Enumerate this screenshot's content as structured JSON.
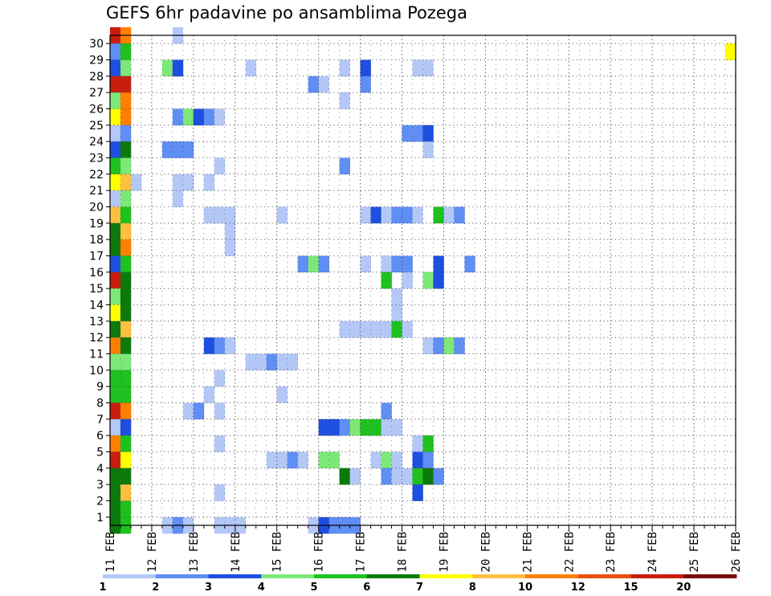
{
  "chart_data": {
    "type": "heatmap",
    "title": "GEFS 6hr padavine po ansamblima Pozega",
    "y_categories": [
      "1",
      "2",
      "3",
      "4",
      "5",
      "6",
      "7",
      "8",
      "9",
      "10",
      "11",
      "12",
      "13",
      "14",
      "15",
      "16",
      "17",
      "18",
      "19",
      "20",
      "21",
      "22",
      "23",
      "24",
      "25",
      "26",
      "27",
      "28",
      "29",
      "30"
    ],
    "x_tick_labels": [
      "11 FEB",
      "12 FEB",
      "13 FEB",
      "14 FEB",
      "15 FEB",
      "16 FEB",
      "17 FEB",
      "18 FEB",
      "19 FEB",
      "20 FEB",
      "21 FEB",
      "22 FEB",
      "23 FEB",
      "24 FEB",
      "25 FEB",
      "26 FEB"
    ],
    "x_unit": "6-hour steps (4 per day)",
    "xlim": [
      0,
      60
    ],
    "ylim": [
      0,
      30
    ],
    "grid": true,
    "colorbar": {
      "colors": [
        "#b4c8f8",
        "#5f8ef4",
        "#1e4fe0",
        "#7de878",
        "#1ec11e",
        "#0b7a0b",
        "#ffff00",
        "#ffc040",
        "#ff8000",
        "#e85010",
        "#c81e0e",
        "#7a0b0b"
      ],
      "labels": [
        "1",
        "2",
        "3",
        "4",
        "5",
        "6",
        "7",
        "8",
        "10",
        "12",
        "15",
        "20"
      ],
      "placement": "bottom"
    },
    "cells": [
      [
        30,
        0,
        10
      ],
      [
        30,
        1,
        8
      ],
      [
        30,
        6,
        0
      ],
      [
        29,
        0,
        1
      ],
      [
        29,
        1,
        4
      ],
      [
        29,
        59,
        6
      ],
      [
        28,
        0,
        2
      ],
      [
        28,
        1,
        3
      ],
      [
        28,
        5,
        3
      ],
      [
        28,
        6,
        2
      ],
      [
        28,
        13,
        0
      ],
      [
        28,
        22,
        0
      ],
      [
        28,
        24,
        2
      ],
      [
        28,
        29,
        0
      ],
      [
        28,
        30,
        0
      ],
      [
        27,
        0,
        10
      ],
      [
        27,
        1,
        10
      ],
      [
        27,
        19,
        1
      ],
      [
        27,
        20,
        0
      ],
      [
        27,
        24,
        1
      ],
      [
        26,
        0,
        3
      ],
      [
        26,
        1,
        8
      ],
      [
        26,
        22,
        0
      ],
      [
        25,
        0,
        6
      ],
      [
        25,
        1,
        8
      ],
      [
        25,
        6,
        1
      ],
      [
        25,
        7,
        3
      ],
      [
        25,
        8,
        2
      ],
      [
        25,
        9,
        1
      ],
      [
        25,
        10,
        0
      ],
      [
        24,
        0,
        0
      ],
      [
        24,
        1,
        1
      ],
      [
        24,
        28,
        1
      ],
      [
        24,
        29,
        1
      ],
      [
        24,
        30,
        2
      ],
      [
        23,
        0,
        2
      ],
      [
        23,
        1,
        5
      ],
      [
        23,
        5,
        1
      ],
      [
        23,
        6,
        1
      ],
      [
        23,
        7,
        1
      ],
      [
        23,
        30,
        0
      ],
      [
        22,
        0,
        4
      ],
      [
        22,
        1,
        3
      ],
      [
        22,
        10,
        0
      ],
      [
        22,
        22,
        1
      ],
      [
        21,
        0,
        6
      ],
      [
        21,
        1,
        7
      ],
      [
        21,
        2,
        0
      ],
      [
        21,
        6,
        0
      ],
      [
        21,
        7,
        0
      ],
      [
        21,
        9,
        0
      ],
      [
        20,
        0,
        0
      ],
      [
        20,
        1,
        3
      ],
      [
        20,
        6,
        0
      ],
      [
        19,
        0,
        7
      ],
      [
        19,
        1,
        4
      ],
      [
        19,
        9,
        0
      ],
      [
        19,
        10,
        0
      ],
      [
        19,
        11,
        0
      ],
      [
        19,
        16,
        0
      ],
      [
        19,
        24,
        0
      ],
      [
        19,
        25,
        2
      ],
      [
        19,
        26,
        0
      ],
      [
        19,
        27,
        1
      ],
      [
        19,
        28,
        1
      ],
      [
        19,
        29,
        0
      ],
      [
        19,
        31,
        4
      ],
      [
        19,
        32,
        0
      ],
      [
        19,
        33,
        1
      ],
      [
        18,
        0,
        5
      ],
      [
        18,
        1,
        7
      ],
      [
        18,
        11,
        0
      ],
      [
        17,
        0,
        5
      ],
      [
        17,
        1,
        8
      ],
      [
        17,
        11,
        0
      ],
      [
        16,
        0,
        2
      ],
      [
        16,
        1,
        4
      ],
      [
        16,
        18,
        1
      ],
      [
        16,
        19,
        3
      ],
      [
        16,
        20,
        1
      ],
      [
        16,
        24,
        0
      ],
      [
        16,
        26,
        0
      ],
      [
        16,
        27,
        1
      ],
      [
        16,
        28,
        1
      ],
      [
        16,
        31,
        2
      ],
      [
        16,
        34,
        1
      ],
      [
        15,
        0,
        10
      ],
      [
        15,
        1,
        5
      ],
      [
        15,
        26,
        4
      ],
      [
        15,
        28,
        0
      ],
      [
        15,
        30,
        3
      ],
      [
        15,
        31,
        2
      ],
      [
        14,
        0,
        3
      ],
      [
        14,
        1,
        5
      ],
      [
        14,
        27,
        0
      ],
      [
        13,
        0,
        6
      ],
      [
        13,
        1,
        5
      ],
      [
        13,
        27,
        0
      ],
      [
        12,
        0,
        5
      ],
      [
        12,
        1,
        7
      ],
      [
        12,
        22,
        0
      ],
      [
        12,
        23,
        0
      ],
      [
        12,
        24,
        0
      ],
      [
        12,
        25,
        0
      ],
      [
        12,
        26,
        0
      ],
      [
        12,
        27,
        4
      ],
      [
        12,
        28,
        0
      ],
      [
        11,
        0,
        8
      ],
      [
        11,
        1,
        5
      ],
      [
        11,
        9,
        2
      ],
      [
        11,
        10,
        1
      ],
      [
        11,
        11,
        0
      ],
      [
        11,
        30,
        0
      ],
      [
        11,
        31,
        1
      ],
      [
        11,
        32,
        3
      ],
      [
        11,
        33,
        1
      ],
      [
        10,
        0,
        3
      ],
      [
        10,
        1,
        3
      ],
      [
        10,
        13,
        0
      ],
      [
        10,
        14,
        0
      ],
      [
        10,
        15,
        1
      ],
      [
        10,
        16,
        0
      ],
      [
        10,
        17,
        0
      ],
      [
        9,
        0,
        4
      ],
      [
        9,
        1,
        4
      ],
      [
        9,
        10,
        0
      ],
      [
        8,
        0,
        4
      ],
      [
        8,
        1,
        4
      ],
      [
        8,
        9,
        0
      ],
      [
        8,
        16,
        0
      ],
      [
        7,
        0,
        10
      ],
      [
        7,
        1,
        8
      ],
      [
        7,
        7,
        0
      ],
      [
        7,
        8,
        1
      ],
      [
        7,
        10,
        0
      ],
      [
        7,
        26,
        1
      ],
      [
        6,
        0,
        0
      ],
      [
        6,
        1,
        2
      ],
      [
        6,
        20,
        2
      ],
      [
        6,
        21,
        2
      ],
      [
        6,
        22,
        1
      ],
      [
        6,
        23,
        3
      ],
      [
        6,
        24,
        4
      ],
      [
        6,
        25,
        4
      ],
      [
        6,
        26,
        0
      ],
      [
        6,
        27,
        0
      ],
      [
        5,
        0,
        8
      ],
      [
        5,
        1,
        4
      ],
      [
        5,
        10,
        0
      ],
      [
        5,
        29,
        0
      ],
      [
        5,
        30,
        4
      ],
      [
        4,
        0,
        10
      ],
      [
        4,
        1,
        6
      ],
      [
        4,
        15,
        0
      ],
      [
        4,
        16,
        0
      ],
      [
        4,
        17,
        1
      ],
      [
        4,
        18,
        0
      ],
      [
        4,
        20,
        3
      ],
      [
        4,
        21,
        3
      ],
      [
        4,
        25,
        0
      ],
      [
        4,
        26,
        3
      ],
      [
        4,
        27,
        0
      ],
      [
        4,
        29,
        2
      ],
      [
        4,
        30,
        1
      ],
      [
        3,
        0,
        5
      ],
      [
        3,
        1,
        5
      ],
      [
        3,
        22,
        5
      ],
      [
        3,
        23,
        0
      ],
      [
        3,
        26,
        1
      ],
      [
        3,
        27,
        0
      ],
      [
        3,
        28,
        0
      ],
      [
        3,
        29,
        4
      ],
      [
        3,
        30,
        5
      ],
      [
        3,
        31,
        1
      ],
      [
        2,
        0,
        5
      ],
      [
        2,
        1,
        7
      ],
      [
        2,
        10,
        0
      ],
      [
        2,
        29,
        2
      ],
      [
        1,
        0,
        5
      ],
      [
        1,
        1,
        4
      ],
      [
        0,
        0,
        5
      ],
      [
        0,
        1,
        4
      ],
      [
        0,
        5,
        0
      ],
      [
        0,
        6,
        1
      ],
      [
        0,
        7,
        0
      ],
      [
        0,
        10,
        0
      ],
      [
        0,
        11,
        0
      ],
      [
        0,
        12,
        0
      ],
      [
        0,
        19,
        0
      ],
      [
        0,
        20,
        2
      ],
      [
        0,
        21,
        1
      ],
      [
        0,
        22,
        1
      ],
      [
        0,
        23,
        1
      ]
    ]
  }
}
